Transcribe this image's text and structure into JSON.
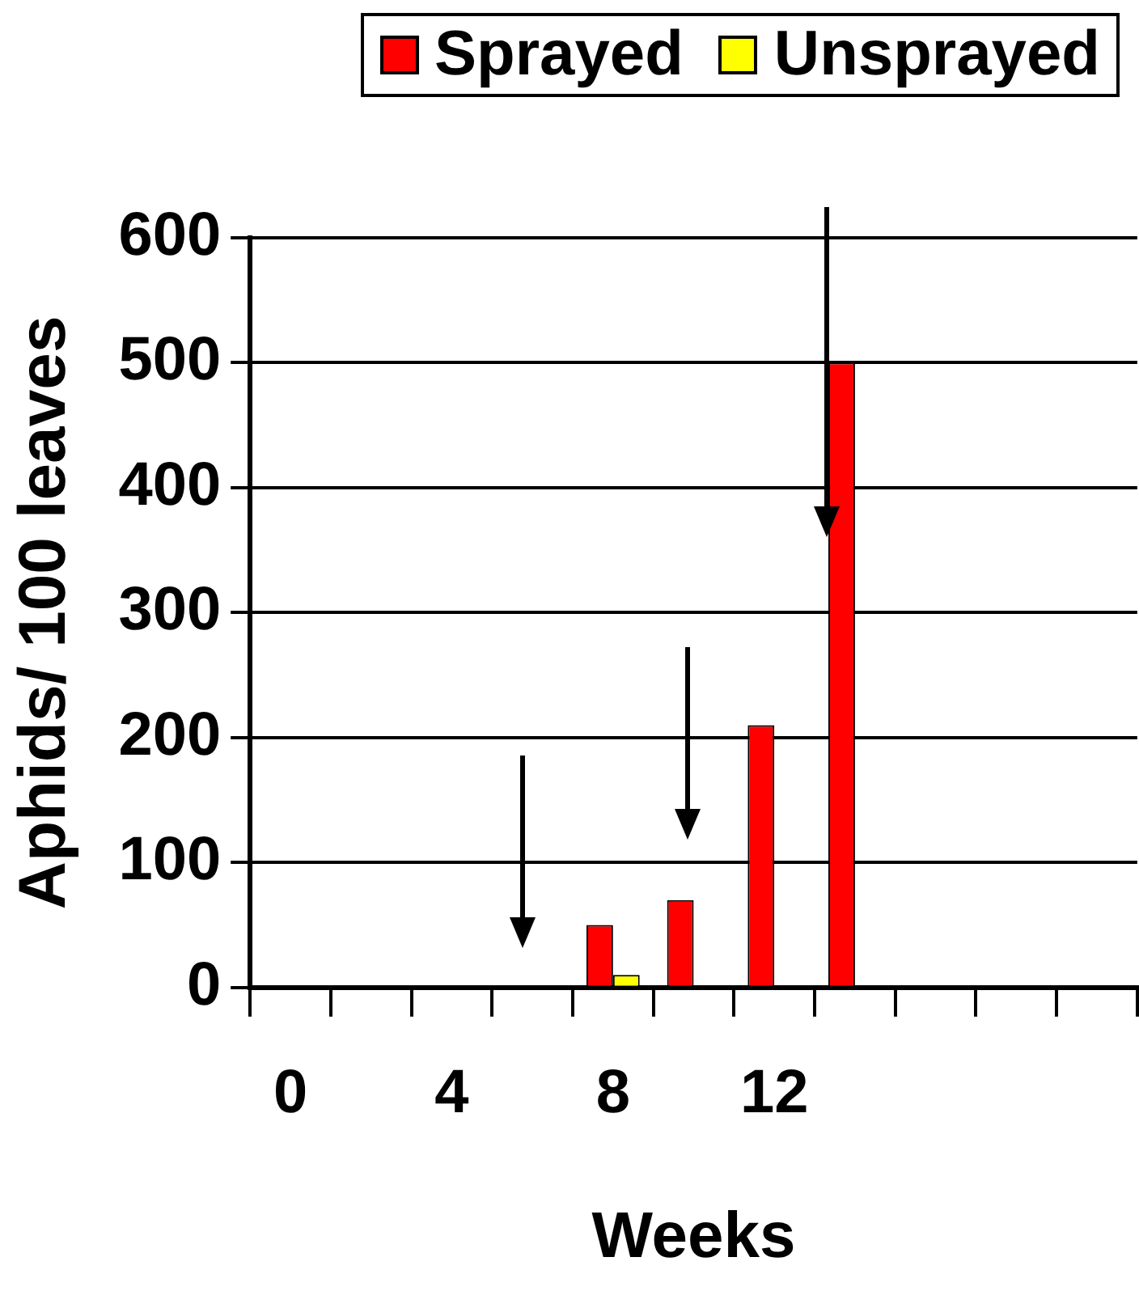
{
  "chart_data": {
    "type": "bar",
    "xlabel": "Weeks",
    "ylabel": "Aphids/ 100 leaves",
    "categories": [
      "0",
      null,
      "4",
      null,
      "8",
      null,
      "12",
      null,
      null,
      null,
      null
    ],
    "series": [
      {
        "name": "Sprayed",
        "color": "#ff0000",
        "values": [
          null,
          null,
          null,
          null,
          50,
          70,
          210,
          500,
          null,
          null,
          null
        ]
      },
      {
        "name": "Unsprayed",
        "color": "#ffff00",
        "values": [
          null,
          null,
          null,
          null,
          10,
          null,
          null,
          null,
          null,
          null,
          null
        ]
      }
    ],
    "ylim": [
      0,
      600
    ],
    "yticks": [
      0,
      100,
      200,
      300,
      400,
      500,
      600
    ],
    "grid": "y",
    "legend": "top right"
  }
}
